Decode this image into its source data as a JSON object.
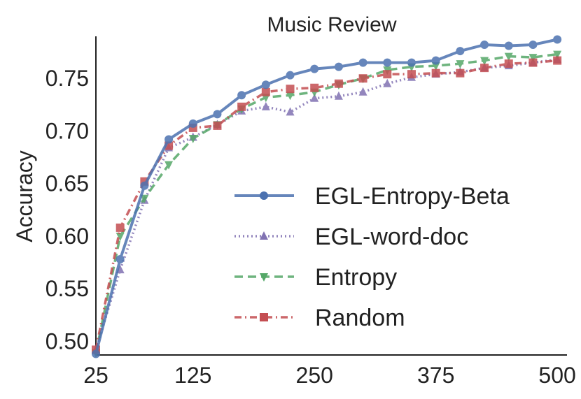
{
  "chart_data": {
    "type": "line",
    "title": "Music Review",
    "xlabel": "",
    "ylabel": "Accuracy",
    "xlim": [
      25,
      510
    ],
    "ylim": [
      0.487,
      0.79
    ],
    "x_ticks": [
      25,
      125,
      250,
      375,
      500
    ],
    "y_ticks": [
      0.5,
      0.55,
      0.6,
      0.65,
      0.7,
      0.75
    ],
    "y_tick_labels": [
      "0.50",
      "0.55",
      "0.60",
      "0.65",
      "0.70",
      "0.75"
    ],
    "x": [
      25,
      50,
      75,
      100,
      125,
      150,
      175,
      200,
      225,
      250,
      275,
      300,
      325,
      350,
      375,
      400,
      425,
      450,
      475,
      500
    ],
    "grid": false,
    "legend_position": "lower-right",
    "series": [
      {
        "name": "EGL-Entropy-Beta",
        "color": "#4c72b0",
        "line_style": "solid",
        "marker": "circle",
        "values": [
          0.488,
          0.578,
          0.648,
          0.692,
          0.707,
          0.716,
          0.734,
          0.744,
          0.753,
          0.759,
          0.761,
          0.765,
          0.765,
          0.765,
          0.767,
          0.776,
          0.782,
          0.781,
          0.782,
          0.787
        ]
      },
      {
        "name": "EGL-word-doc",
        "color": "#8172b2",
        "line_style": "dotted",
        "marker": "triangle-up",
        "values": [
          0.492,
          0.568,
          0.634,
          0.684,
          0.694,
          0.706,
          0.719,
          0.723,
          0.718,
          0.731,
          0.733,
          0.737,
          0.745,
          0.751,
          0.754,
          0.756,
          0.76,
          0.762,
          0.765,
          0.768
        ]
      },
      {
        "name": "Entropy",
        "color": "#55a868",
        "line_style": "dashed",
        "marker": "triangle-down",
        "values": [
          0.489,
          0.6,
          0.636,
          0.668,
          0.693,
          0.706,
          0.721,
          0.732,
          0.734,
          0.737,
          0.744,
          0.75,
          0.758,
          0.761,
          0.762,
          0.764,
          0.767,
          0.771,
          0.77,
          0.773
        ]
      },
      {
        "name": "Random",
        "color": "#c44e52",
        "line_style": "dashdot",
        "marker": "square",
        "values": [
          0.492,
          0.608,
          0.652,
          0.686,
          0.703,
          0.705,
          0.723,
          0.737,
          0.74,
          0.741,
          0.745,
          0.75,
          0.754,
          0.754,
          0.755,
          0.755,
          0.76,
          0.764,
          0.765,
          0.767
        ]
      }
    ]
  }
}
